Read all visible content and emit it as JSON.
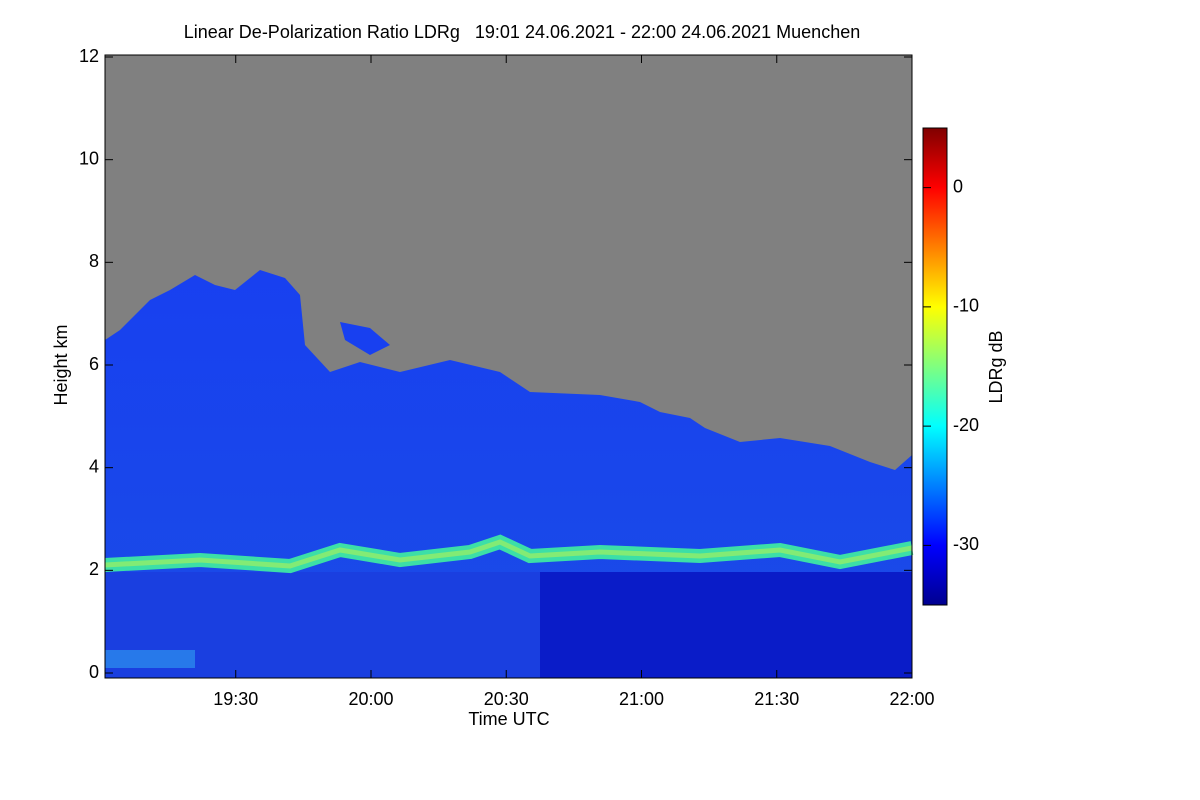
{
  "chart_data": {
    "type": "heatmap",
    "title": "Linear De-Polarization Ratio LDRg   19:01 24.06.2021 - 22:00 24.06.2021 Muenchen",
    "x_label": "Time UTC",
    "y_label": "Height km",
    "xlim": [
      19.0167,
      22.0
    ],
    "xticks": [
      {
        "value": 19.5,
        "label": "19:30"
      },
      {
        "value": 20.0,
        "label": "20:00"
      },
      {
        "value": 20.5,
        "label": "20:30"
      },
      {
        "value": 21.0,
        "label": "21:00"
      },
      {
        "value": 21.5,
        "label": "21:30"
      },
      {
        "value": 22.0,
        "label": "22:00"
      }
    ],
    "ylim": [
      0,
      12
    ],
    "yticks": [
      0,
      2,
      4,
      6,
      8,
      10,
      12
    ],
    "colorbar": {
      "label": "LDRg dB",
      "lim": [
        -35,
        5
      ],
      "ticks": [
        -30,
        -20,
        -10,
        0
      ]
    }
  }
}
